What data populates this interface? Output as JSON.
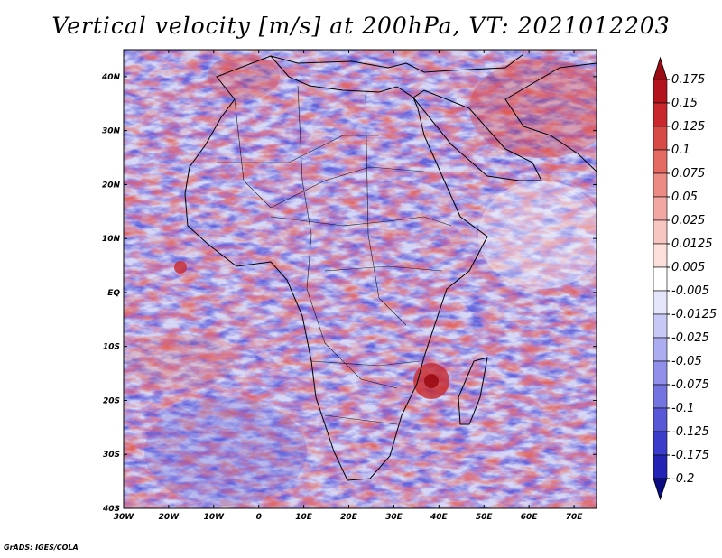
{
  "title": "Vertical velocity [m/s] at 200hPa, VT: 2021012203",
  "credit": "GrADS: IGES/COLA",
  "map": {
    "lon_range": [
      -30,
      75
    ],
    "lat_range": [
      -40,
      45
    ],
    "lon_ticks": [
      {
        "value": -30,
        "label": "30W"
      },
      {
        "value": -20,
        "label": "20W"
      },
      {
        "value": -10,
        "label": "10W"
      },
      {
        "value": 0,
        "label": "0"
      },
      {
        "value": 10,
        "label": "10E"
      },
      {
        "value": 20,
        "label": "20E"
      },
      {
        "value": 30,
        "label": "30E"
      },
      {
        "value": 40,
        "label": "40E"
      },
      {
        "value": 50,
        "label": "50E"
      },
      {
        "value": 60,
        "label": "60E"
      },
      {
        "value": 70,
        "label": "70E"
      }
    ],
    "lat_ticks": [
      {
        "value": 40,
        "label": "40N"
      },
      {
        "value": 30,
        "label": "30N"
      },
      {
        "value": 20,
        "label": "20N"
      },
      {
        "value": 10,
        "label": "10N"
      },
      {
        "value": 0,
        "label": "EQ"
      },
      {
        "value": -10,
        "label": "10S"
      },
      {
        "value": -20,
        "label": "20S"
      },
      {
        "value": -30,
        "label": "30S"
      },
      {
        "value": -40,
        "label": "40S"
      }
    ]
  },
  "colorbar": {
    "levels": [
      {
        "label": "0.175",
        "color": "#b3141c"
      },
      {
        "label": "0.15",
        "color": "#c8282c"
      },
      {
        "label": "0.125",
        "color": "#d84a46"
      },
      {
        "label": "0.1",
        "color": "#e46a64"
      },
      {
        "label": "0.075",
        "color": "#ec8a84"
      },
      {
        "label": "0.05",
        "color": "#f2a8a2"
      },
      {
        "label": "0.025",
        "color": "#f8c6c0"
      },
      {
        "label": "0.0125",
        "color": "#fcdfda"
      },
      {
        "label": "0.005",
        "color": "#ffffff"
      },
      {
        "label": "-0.005",
        "color": "#e4e4fa"
      },
      {
        "label": "-0.0125",
        "color": "#c8c8f6"
      },
      {
        "label": "-0.025",
        "color": "#acacf0"
      },
      {
        "label": "-0.05",
        "color": "#9090ea"
      },
      {
        "label": "-0.075",
        "color": "#7474e0"
      },
      {
        "label": "-0.1",
        "color": "#5858d6"
      },
      {
        "label": "-0.125",
        "color": "#3c3cca"
      },
      {
        "label": "-0.175",
        "color": "#2424b4"
      },
      {
        "label": "-0.2",
        "color": "#14149a"
      }
    ],
    "top_color": "#9c0c14",
    "bottom_color": "#0c0c82"
  }
}
